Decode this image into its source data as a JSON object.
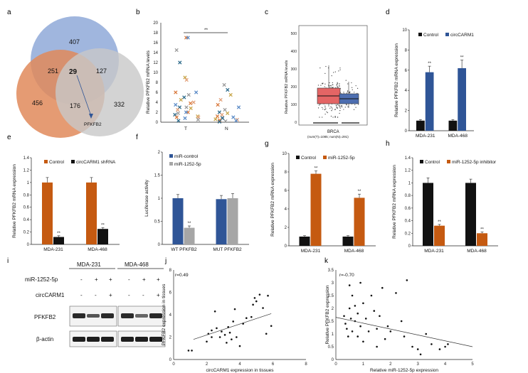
{
  "panel_letters": [
    "a",
    "b",
    "c",
    "d",
    "e",
    "f",
    "g",
    "h",
    "i",
    "j",
    "k"
  ],
  "venn": {
    "regions": [
      "407",
      "251",
      "29",
      "127",
      "456",
      "176",
      "332"
    ],
    "callout": "PFKFB2",
    "colors": {
      "blue": "#8fa9d8",
      "orange": "#e0895a",
      "gray": "#c8c8c8"
    }
  },
  "b": {
    "ylabel": "Relative PFKFB2 mRNA levels",
    "categories": [
      "T",
      "N"
    ],
    "yticks": [
      "0",
      "2",
      "4",
      "6",
      "8",
      "10",
      "12",
      "14",
      "16",
      "18",
      "20"
    ],
    "significance": "**"
  },
  "c": {
    "ylabel": "Relative PFKFB2 mRNA levels",
    "xlabel": "BRCA",
    "note": "(num(T)=1085; num(N)=291)",
    "yticks": [
      "0",
      "100",
      "200",
      "300",
      "400",
      "500"
    ],
    "colors": {
      "T": "#e46565",
      "N": "#4d6eb0"
    }
  },
  "i": {
    "groups": [
      "MDA-231",
      "MDA-468"
    ],
    "row_labels": [
      "miR-1252-5p",
      "circCARM1",
      "PFKFB2",
      "β-actin"
    ],
    "mir_signs": [
      "-",
      "+",
      "+",
      "-",
      "+",
      "+"
    ],
    "circ_signs": [
      "-",
      "-",
      "+",
      "-",
      "-",
      "+"
    ]
  },
  "colors": {
    "black": "#111111",
    "blue": "#2f5597",
    "orange": "#c55a11",
    "gray": "#a6a6a6"
  },
  "chart_data": [
    {
      "panel": "d",
      "type": "bar",
      "categories": [
        "MDA-231",
        "MDA-468"
      ],
      "series": [
        {
          "name": "Control",
          "values": [
            1.0,
            1.0
          ]
        },
        {
          "name": "circCARM1",
          "values": [
            5.8,
            6.2
          ]
        }
      ],
      "errors": [
        [
          0.1,
          0.1
        ],
        [
          0.6,
          0.8
        ]
      ],
      "ylabel": "Relative PFKFB2 mRNA expression",
      "ylim": [
        0,
        10
      ],
      "yticks": [
        0,
        2,
        4,
        6,
        8,
        10
      ],
      "significance": [
        "**",
        "**"
      ],
      "legend": "top-right"
    },
    {
      "panel": "e",
      "type": "bar",
      "categories": [
        "MDA-231",
        "MDA-468"
      ],
      "series": [
        {
          "name": "Control",
          "values": [
            1.0,
            1.0
          ]
        },
        {
          "name": "circCARM1 shRNA",
          "values": [
            0.12,
            0.25
          ]
        }
      ],
      "errors": [
        [
          0.08,
          0.08
        ],
        [
          0.02,
          0.02
        ]
      ],
      "ylabel": "Relative PFKFB2 mRNA expression",
      "ylim": [
        0,
        1.4
      ],
      "yticks": [
        0,
        0.2,
        0.4,
        0.6,
        0.8,
        1,
        1.2,
        1.4
      ],
      "significance": [
        "**",
        "**"
      ],
      "legend": "top"
    },
    {
      "panel": "f",
      "type": "bar",
      "categories": [
        "WT PFKFB2",
        "MUT PFKFB2"
      ],
      "series": [
        {
          "name": "miR-control",
          "values": [
            1.0,
            0.98
          ]
        },
        {
          "name": "miR-1252-5p",
          "values": [
            0.36,
            1.0
          ]
        }
      ],
      "errors": [
        [
          0.08,
          0.08
        ],
        [
          0.04,
          0.1
        ]
      ],
      "ylabel": "Luciferase activity",
      "ylim": [
        0,
        2.0
      ],
      "yticks": [
        0,
        0.5,
        1.0,
        1.5,
        2.0
      ],
      "significance": [
        "**",
        ""
      ],
      "legend": "top-left"
    },
    {
      "panel": "g",
      "type": "bar",
      "categories": [
        "MDA-231",
        "MDA-468"
      ],
      "series": [
        {
          "name": "Control",
          "values": [
            1.0,
            1.0
          ]
        },
        {
          "name": "miR-1252-5p",
          "values": [
            7.8,
            5.2
          ]
        }
      ],
      "errors": [
        [
          0.1,
          0.1
        ],
        [
          0.3,
          0.4
        ]
      ],
      "ylabel": "Relative PFKFB2 mRNA expression",
      "ylim": [
        0,
        10
      ],
      "yticks": [
        0,
        2,
        4,
        6,
        8,
        10
      ],
      "significance": [
        "**",
        "**"
      ],
      "legend": "top"
    },
    {
      "panel": "h",
      "type": "bar",
      "categories": [
        "MDA-231",
        "MDA-468"
      ],
      "series": [
        {
          "name": "Control",
          "values": [
            1.0,
            1.0
          ]
        },
        {
          "name": "miR-1252-5p inhibitor",
          "values": [
            0.32,
            0.2
          ]
        }
      ],
      "errors": [
        [
          0.08,
          0.06
        ],
        [
          0.02,
          0.02
        ]
      ],
      "ylabel": "Relative PFKFB2 mRNA expression",
      "ylim": [
        0,
        1.4
      ],
      "yticks": [
        0,
        0.2,
        0.4,
        0.6,
        0.8,
        1,
        1.2,
        1.4
      ],
      "significance": [
        "**",
        "**"
      ],
      "legend": "top"
    },
    {
      "panel": "j",
      "type": "scatter",
      "annotation": "r=0.49",
      "xlabel": "circCARM1 expression in tissues",
      "ylabel": "PFKFB2 expression in tissues",
      "xlim": [
        0,
        8
      ],
      "ylim": [
        0,
        8
      ],
      "xticks": [
        0,
        2,
        4,
        6,
        8
      ],
      "yticks": [
        0,
        2,
        4,
        6,
        8
      ],
      "points": [
        [
          0.9,
          0.8
        ],
        [
          1.1,
          0.8
        ],
        [
          2.0,
          1.6
        ],
        [
          2.1,
          2.3
        ],
        [
          2.3,
          2.6
        ],
        [
          2.3,
          2.0
        ],
        [
          2.5,
          4.3
        ],
        [
          2.6,
          2.8
        ],
        [
          2.8,
          2.0
        ],
        [
          2.9,
          2.5
        ],
        [
          3.1,
          2.2
        ],
        [
          3.3,
          2.9
        ],
        [
          3.4,
          2.4
        ],
        [
          3.5,
          1.8
        ],
        [
          3.6,
          3.4
        ],
        [
          3.7,
          4.5
        ],
        [
          3.8,
          2.0
        ],
        [
          4.0,
          1.2
        ],
        [
          4.2,
          3.2
        ],
        [
          4.4,
          3.7
        ],
        [
          4.7,
          3.8
        ],
        [
          4.8,
          4.9
        ],
        [
          4.9,
          5.5
        ],
        [
          5.0,
          5.2
        ],
        [
          5.2,
          5.8
        ],
        [
          5.4,
          4.6
        ],
        [
          5.6,
          2.3
        ],
        [
          5.7,
          5.7
        ],
        [
          5.9,
          3.0
        ],
        [
          3.2,
          1.5
        ]
      ],
      "fit": [
        [
          1.2,
          1.8
        ],
        [
          5.9,
          4.1
        ]
      ]
    },
    {
      "panel": "k",
      "type": "scatter",
      "annotation": "r=-0.70",
      "xlabel": "Relative miR-1252-5p expression",
      "ylabel": "Relative PFKFB2 expression",
      "xlim": [
        0,
        5
      ],
      "ylim": [
        0,
        3.5
      ],
      "xticks": [
        0,
        1,
        2,
        3,
        4,
        5
      ],
      "yticks": [
        0,
        0.5,
        1,
        1.5,
        2,
        2.5,
        3,
        3.5
      ],
      "points": [
        [
          0.3,
          1.7
        ],
        [
          0.35,
          1.4
        ],
        [
          0.4,
          1.2
        ],
        [
          0.45,
          0.9
        ],
        [
          0.5,
          2.9
        ],
        [
          0.5,
          2.0
        ],
        [
          0.55,
          1.6
        ],
        [
          0.6,
          2.5
        ],
        [
          0.6,
          1.1
        ],
        [
          0.7,
          2.1
        ],
        [
          0.7,
          1.5
        ],
        [
          0.8,
          1.8
        ],
        [
          0.8,
          0.9
        ],
        [
          0.9,
          3.0
        ],
        [
          0.9,
          1.3
        ],
        [
          1.0,
          2.2
        ],
        [
          1.0,
          0.7
        ],
        [
          1.1,
          1.6
        ],
        [
          1.2,
          1.1
        ],
        [
          1.3,
          2.5
        ],
        [
          1.4,
          1.9
        ],
        [
          1.5,
          0.5
        ],
        [
          1.5,
          1.2
        ],
        [
          1.6,
          1.7
        ],
        [
          1.7,
          2.8
        ],
        [
          1.8,
          0.8
        ],
        [
          1.9,
          1.3
        ],
        [
          2.0,
          1.1
        ],
        [
          2.2,
          2.6
        ],
        [
          2.4,
          1.5
        ],
        [
          2.5,
          0.9
        ],
        [
          2.6,
          3.1
        ],
        [
          2.8,
          0.5
        ],
        [
          3.0,
          0.4
        ],
        [
          3.1,
          0.2
        ],
        [
          3.3,
          1.0
        ],
        [
          3.5,
          0.6
        ],
        [
          3.8,
          0.4
        ],
        [
          4.0,
          0.5
        ],
        [
          4.1,
          0.6
        ]
      ],
      "fit": [
        [
          0,
          1.65
        ],
        [
          5,
          0.5
        ]
      ]
    }
  ]
}
